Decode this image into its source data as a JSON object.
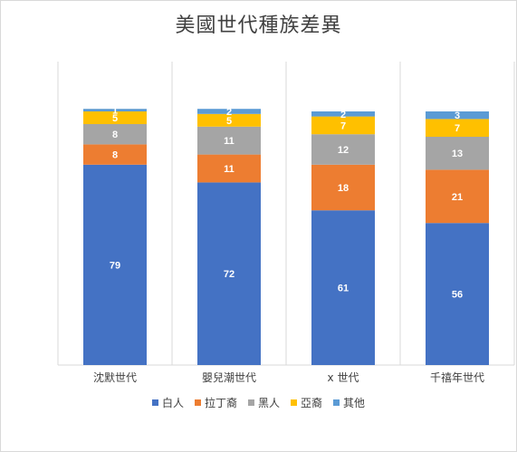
{
  "chart_data": {
    "type": "bar",
    "stacked": true,
    "title": "美國世代種族差異",
    "xlabel": "",
    "ylabel": "",
    "ylim": [
      0,
      100
    ],
    "grid": "vertical category separators",
    "legend_position": "bottom",
    "categories": [
      "沈默世代",
      "嬰兒潮世代",
      "x 世代",
      "千禧年世代"
    ],
    "series": [
      {
        "name": "白人",
        "color": "#4472c4",
        "values": [
          79,
          72,
          61,
          56
        ]
      },
      {
        "name": "拉丁裔",
        "color": "#ed7d31",
        "values": [
          8,
          11,
          18,
          21
        ]
      },
      {
        "name": "黑人",
        "color": "#a5a5a5",
        "values": [
          8,
          11,
          12,
          13
        ]
      },
      {
        "name": "亞裔",
        "color": "#ffc000",
        "values": [
          5,
          5,
          7,
          7
        ]
      },
      {
        "name": "其他",
        "color": "#5b9bd5",
        "values": [
          1,
          2,
          2,
          3
        ]
      }
    ]
  }
}
